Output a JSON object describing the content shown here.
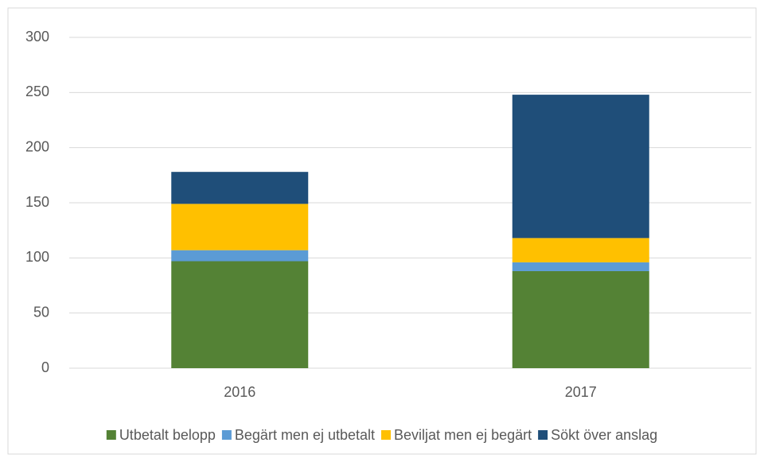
{
  "chart_data": {
    "type": "stacked-bar",
    "categories": [
      "2016",
      "2017"
    ],
    "series": [
      {
        "name": "Utbetalt belopp",
        "color": "#548235",
        "values": [
          97,
          88
        ]
      },
      {
        "name": "Begärt men ej utbetalt",
        "color": "#5b9bd5",
        "values": [
          10,
          8
        ]
      },
      {
        "name": "Beviljat men ej begärt",
        "color": "#ffc000",
        "values": [
          42,
          22
        ]
      },
      {
        "name": "Sökt över anslag",
        "color": "#1f4e79",
        "values": [
          29,
          130
        ]
      }
    ],
    "ylim": [
      0,
      300
    ],
    "yticks": [
      0,
      50,
      100,
      150,
      200,
      250,
      300
    ],
    "grid": true,
    "legend": "bottom"
  }
}
